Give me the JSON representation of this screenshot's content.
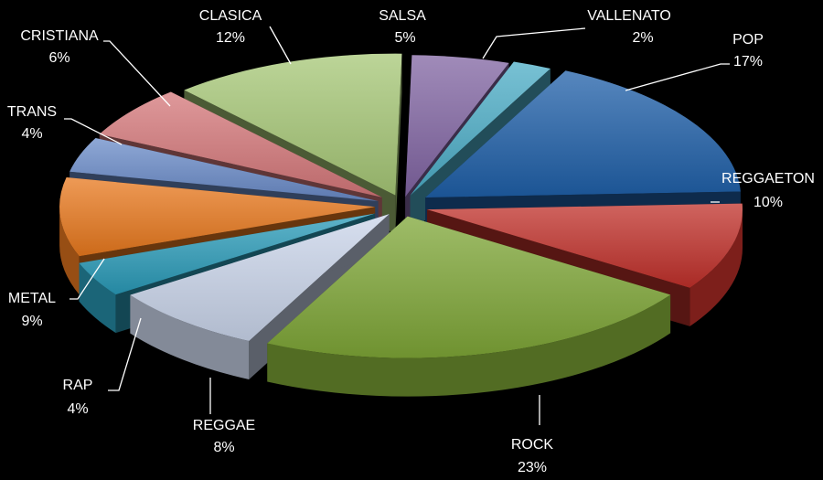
{
  "chart_data": {
    "type": "pie",
    "style": "3d-exploded",
    "title": "",
    "categories": [
      "SALSA",
      "VALLENATO",
      "POP",
      "REGGAETON",
      "ROCK",
      "REGGAE",
      "RAP",
      "METAL",
      "TRANS",
      "CRISTIANA",
      "CLASICA"
    ],
    "values": [
      5,
      2,
      17,
      10,
      23,
      8,
      4,
      9,
      4,
      6,
      12
    ],
    "value_labels": [
      "5%",
      "2%",
      "17%",
      "10%",
      "23%",
      "8%",
      "4%",
      "9%",
      "4%",
      "6%",
      "12%"
    ],
    "colors": [
      "#8064A2",
      "#4BACC6",
      "#1F5FA8",
      "#C0302A",
      "#7EA636",
      "#C9D4EA",
      "#2A9BB8",
      "#E8781E",
      "#6A8BC8",
      "#D4777A",
      "#A6C776"
    ],
    "background": "#000000",
    "label_color": "#FFFFFF"
  }
}
